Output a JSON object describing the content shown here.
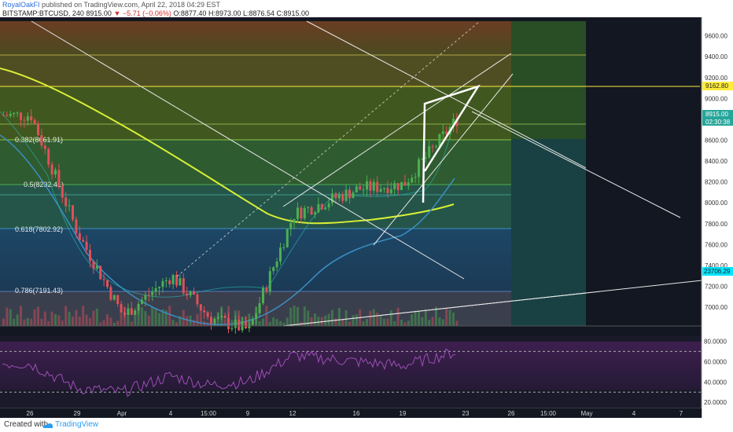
{
  "header": {
    "author": "RoyalOakFI",
    "published": "published on TradingView.com, April 22, 2018 04:29 EST",
    "symbol": "BITSTAMP:BTCUSD, 240",
    "last": "8915.00",
    "change": "▼ −5.71 (−0.06%)",
    "ohlc": "O:8877.40 H:8973.00 L:8876.54 C:8915.00"
  },
  "footer": {
    "created": "Created with",
    "brand": "TradingView"
  },
  "colors": {
    "background": "#131722",
    "price_axis_bg": "#ffffff",
    "rsi_line": "#9c4fb5",
    "ma_yellow": "#d8ef36",
    "ma_blue": "#3b8fc4",
    "candle_up": "#4caf50",
    "candle_down": "#e0505a",
    "resistance": "#ffeb3b",
    "current_price": "#26a69a",
    "cyan_label": "#00e5ff"
  },
  "price_axis": {
    "ticks": [
      "9600.00",
      "9400.00",
      "9200.00",
      "9000.00",
      "8800.00",
      "8600.00",
      "8400.00",
      "8200.00",
      "8000.00",
      "7800.00",
      "7600.00",
      "7400.00",
      "7200.00",
      "7000.00"
    ],
    "labels": {
      "resistance": "9162.80",
      "current": "8915.00",
      "countdown": "02:30:38",
      "cyan": "23706.29"
    }
  },
  "rsi_axis": {
    "ticks": [
      "80.0000",
      "60.0000",
      "40.0000",
      "20.0000"
    ]
  },
  "time_axis": {
    "ticks": [
      "26",
      "29",
      "Apr",
      "4",
      "15:00",
      "9",
      "12",
      "16",
      "19",
      "23",
      "26",
      "15:00",
      "May",
      "4",
      "7"
    ]
  },
  "fib_levels": [
    {
      "label": "0.382(8661.91)",
      "price": 8661.91
    },
    {
      "label": "0.5(8232.41)",
      "price": 8232.41
    },
    {
      "label": "0.618(7802.92)",
      "price": 7802.92
    },
    {
      "label": "0.786(7191.43)",
      "price": 7191.43
    }
  ],
  "chart_data": {
    "type": "candlestick",
    "symbol": "BITSTAMP:BTCUSD",
    "interval": "240",
    "ylim": [
      6820,
      9740
    ],
    "rsi_ylim": [
      14,
      85
    ],
    "price_points": [
      [
        "26",
        8840
      ],
      [
        "29",
        7700
      ],
      [
        "Apr",
        6920
      ],
      [
        "4",
        7300
      ],
      [
        "15:00",
        6900
      ],
      [
        "9",
        6780
      ],
      [
        "12",
        7890
      ],
      [
        "16",
        8130
      ],
      [
        "19",
        8180
      ],
      [
        "23",
        8915
      ]
    ],
    "rsi_points": [
      [
        "26",
        58
      ],
      [
        "29",
        34
      ],
      [
        "Apr",
        30
      ],
      [
        "4",
        46
      ],
      [
        "15:00",
        37
      ],
      [
        "9",
        40
      ],
      [
        "12",
        66
      ],
      [
        "16",
        60
      ],
      [
        "19",
        56
      ],
      [
        "23",
        72
      ]
    ],
    "levels": {
      "resistance": 9162.8,
      "current": 8915.0,
      "rsi_upper": 70,
      "rsi_lower": 30
    }
  }
}
